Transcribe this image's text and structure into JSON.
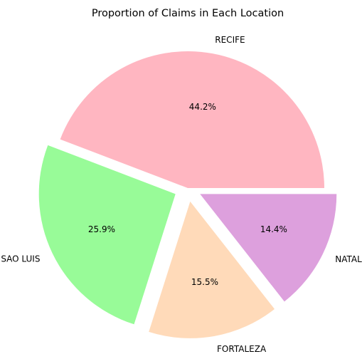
{
  "chart_data": {
    "type": "pie",
    "title": "Proportion of Claims in Each Location",
    "slices": [
      {
        "label": "RECIFE",
        "value": 44.2,
        "pct_label": "44.2%",
        "color": "#FFB6C1",
        "explode": 0.0
      },
      {
        "label": "SAO LUIS",
        "value": 25.9,
        "pct_label": "25.9%",
        "color": "#98FB98",
        "explode": 0.1
      },
      {
        "label": "FORTALEZA",
        "value": 15.5,
        "pct_label": "15.5%",
        "color": "#FFDAB9",
        "explode": 0.1
      },
      {
        "label": "NATAL",
        "value": 14.4,
        "pct_label": "14.4%",
        "color": "#DDA0DD",
        "explode": 0.1
      }
    ],
    "start_angle_deg": 0,
    "direction": "counterclockwise",
    "legend": "none"
  }
}
